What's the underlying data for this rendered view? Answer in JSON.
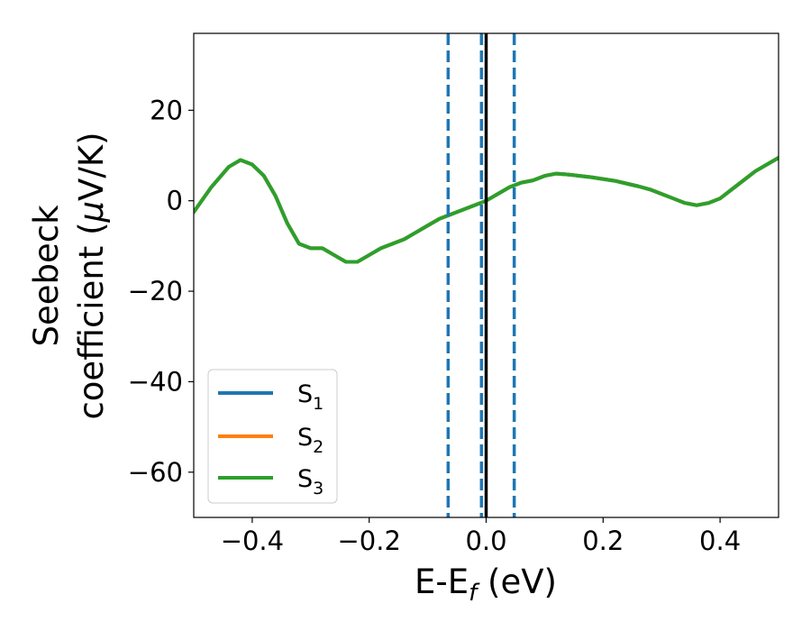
{
  "chart_data": {
    "type": "line",
    "xlabel": {
      "main": "E-E",
      "sub": "f",
      "unit": " (eV)"
    },
    "ylabel": {
      "line1": "Seebeck",
      "line2_start": "coefficient  (",
      "mu": "μ",
      "line2_end": "V/K)"
    },
    "xlim": [
      -0.5,
      0.5
    ],
    "ylim": [
      -70,
      37
    ],
    "xticks": [
      -0.4,
      -0.2,
      0.0,
      0.2,
      0.4
    ],
    "xtick_labels": [
      "−0.4",
      "−0.2",
      "0.0",
      "0.2",
      "0.4"
    ],
    "yticks": [
      20,
      0,
      -20,
      -40,
      -60
    ],
    "ytick_labels": [
      "20",
      "0",
      "−20",
      "−40",
      "−60"
    ],
    "grid": false,
    "legend_position": "lower-left",
    "vertical_lines": [
      {
        "x": -0.065,
        "style": "dashed",
        "color": "#1f77b4"
      },
      {
        "x": -0.008,
        "style": "dashed",
        "color": "#1f77b4"
      },
      {
        "x": 0.0,
        "style": "solid",
        "color": "#000000"
      },
      {
        "x": 0.048,
        "style": "dashed",
        "color": "#1f77b4"
      }
    ],
    "series": [
      {
        "name": "S",
        "sub": "1",
        "color": "#1f77b4",
        "x": [
          -0.5,
          -0.47,
          -0.44,
          -0.42,
          -0.4,
          -0.38,
          -0.36,
          -0.34,
          -0.32,
          -0.3,
          -0.28,
          -0.26,
          -0.24,
          -0.22,
          -0.2,
          -0.18,
          -0.16,
          -0.14,
          -0.12,
          -0.1,
          -0.08,
          -0.06,
          -0.04,
          -0.02,
          0.0,
          0.02,
          0.04,
          0.06,
          0.08,
          0.1,
          0.12,
          0.14,
          0.16,
          0.18,
          0.2,
          0.22,
          0.24,
          0.26,
          0.28,
          0.3,
          0.32,
          0.34,
          0.36,
          0.38,
          0.4,
          0.42,
          0.44,
          0.46,
          0.48,
          0.5
        ],
        "y": [
          -2.5,
          3,
          7.5,
          9,
          8,
          5.5,
          1,
          -5,
          -9.5,
          -10.5,
          -10.5,
          -12,
          -13.5,
          -13.5,
          -12,
          -10.5,
          -9.5,
          -8.5,
          -7,
          -5.5,
          -4,
          -3,
          -2,
          -1,
          0,
          1.5,
          3,
          4,
          4.5,
          5.5,
          6,
          5.8,
          5.5,
          5.2,
          4.8,
          4.4,
          3.8,
          3.2,
          2.5,
          1.5,
          0.5,
          -0.5,
          -1,
          -0.5,
          0.5,
          2.5,
          4.5,
          6.5,
          8,
          9.5
        ]
      },
      {
        "name": "S",
        "sub": "2",
        "color": "#ff7f0e",
        "x": [
          -0.5,
          -0.47,
          -0.44,
          -0.42,
          -0.4,
          -0.38,
          -0.36,
          -0.34,
          -0.32,
          -0.3,
          -0.28,
          -0.26,
          -0.24,
          -0.22,
          -0.2,
          -0.18,
          -0.16,
          -0.14,
          -0.12,
          -0.1,
          -0.08,
          -0.06,
          -0.04,
          -0.02,
          0.0,
          0.02,
          0.04,
          0.06,
          0.08,
          0.1,
          0.12,
          0.14,
          0.16,
          0.18,
          0.2,
          0.22,
          0.24,
          0.26,
          0.28,
          0.3,
          0.32,
          0.34,
          0.36,
          0.38,
          0.4,
          0.42,
          0.44,
          0.46,
          0.48,
          0.5
        ],
        "y": [
          -2.5,
          3,
          7.5,
          9,
          8,
          5.5,
          1,
          -5,
          -9.5,
          -10.5,
          -10.5,
          -12,
          -13.5,
          -13.5,
          -12,
          -10.5,
          -9.5,
          -8.5,
          -7,
          -5.5,
          -4,
          -3,
          -2,
          -1,
          0,
          1.5,
          3,
          4,
          4.5,
          5.5,
          6,
          5.8,
          5.5,
          5.2,
          4.8,
          4.4,
          3.8,
          3.2,
          2.5,
          1.5,
          0.5,
          -0.5,
          -1,
          -0.5,
          0.5,
          2.5,
          4.5,
          6.5,
          8,
          9.5
        ]
      },
      {
        "name": "S",
        "sub": "3",
        "color": "#2ca02c",
        "x": [
          -0.5,
          -0.47,
          -0.44,
          -0.42,
          -0.4,
          -0.38,
          -0.36,
          -0.34,
          -0.32,
          -0.3,
          -0.28,
          -0.26,
          -0.24,
          -0.22,
          -0.2,
          -0.18,
          -0.16,
          -0.14,
          -0.12,
          -0.1,
          -0.08,
          -0.06,
          -0.04,
          -0.02,
          0.0,
          0.02,
          0.04,
          0.06,
          0.08,
          0.1,
          0.12,
          0.14,
          0.16,
          0.18,
          0.2,
          0.22,
          0.24,
          0.26,
          0.28,
          0.3,
          0.32,
          0.34,
          0.36,
          0.38,
          0.4,
          0.42,
          0.44,
          0.46,
          0.48,
          0.5
        ],
        "y": [
          -2.5,
          3,
          7.5,
          9,
          8,
          5.5,
          1,
          -5,
          -9.5,
          -10.5,
          -10.5,
          -12,
          -13.5,
          -13.5,
          -12,
          -10.5,
          -9.5,
          -8.5,
          -7,
          -5.5,
          -4,
          -3,
          -2,
          -1,
          0,
          1.5,
          3,
          4,
          4.5,
          5.5,
          6,
          5.8,
          5.5,
          5.2,
          4.8,
          4.4,
          3.8,
          3.2,
          2.5,
          1.5,
          0.5,
          -0.5,
          -1,
          -0.5,
          0.5,
          2.5,
          4.5,
          6.5,
          8,
          9.5
        ]
      }
    ]
  }
}
